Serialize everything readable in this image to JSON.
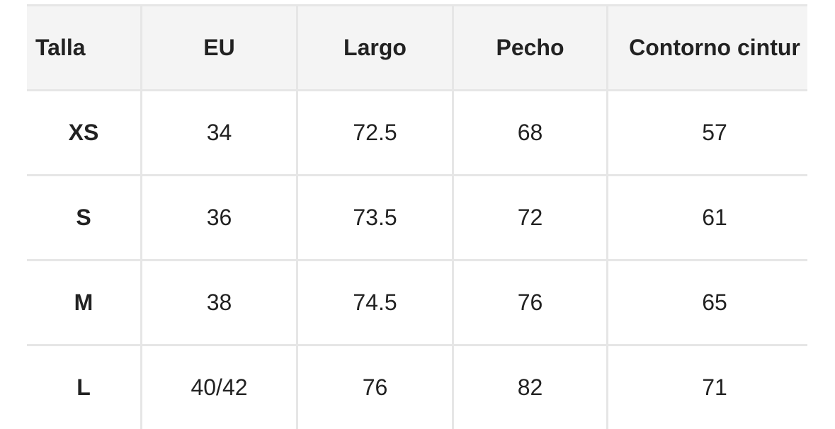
{
  "table": {
    "headers": [
      "Talla",
      "EU",
      "Largo",
      "Pecho",
      "Contorno cintur"
    ],
    "rows": [
      [
        "XS",
        "34",
        "72.5",
        "68",
        "57"
      ],
      [
        "S",
        "36",
        "73.5",
        "72",
        "61"
      ],
      [
        "M",
        "38",
        "74.5",
        "76",
        "65"
      ],
      [
        "L",
        "40/42",
        "76",
        "82",
        "71"
      ]
    ]
  },
  "colors": {
    "border": "#e6e6e6",
    "header_bg": "#f4f4f4",
    "text": "#222222"
  }
}
